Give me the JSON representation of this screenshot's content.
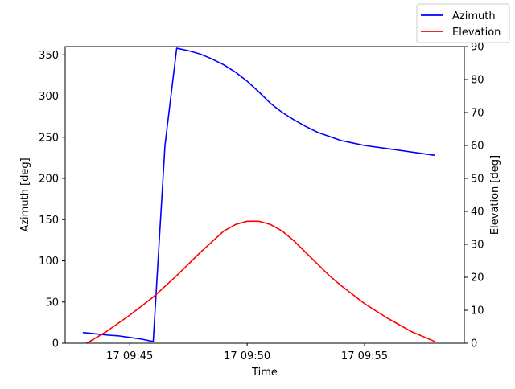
{
  "chart_data": {
    "type": "line",
    "title": "",
    "xlabel": "Time",
    "ylabel_left": "Azimuth [deg]",
    "ylabel_right": "Elevation [deg]",
    "x_tick_labels": [
      "17 09:45",
      "17 09:50",
      "17 09:55"
    ],
    "x_tick_values": [
      "09:45",
      "09:50",
      "09:55"
    ],
    "xlim": [
      "09:42:15",
      "09:59:15"
    ],
    "ylim_left": [
      0,
      360
    ],
    "ylim_right": [
      0,
      90
    ],
    "y_ticks_left": [
      0,
      50,
      100,
      150,
      200,
      250,
      300,
      350
    ],
    "y_ticks_right": [
      0,
      10,
      20,
      30,
      40,
      50,
      60,
      70,
      80,
      90
    ],
    "grid": false,
    "legend_position": "top-right",
    "series": [
      {
        "name": "Azimuth",
        "axis": "left",
        "color": "#0000ff",
        "x": [
          "09:43:00",
          "09:44:00",
          "09:44:30",
          "09:45:00",
          "09:45:30",
          "09:46:00",
          "09:46:30",
          "09:47:00",
          "09:47:30",
          "09:48:00",
          "09:48:30",
          "09:49:00",
          "09:49:30",
          "09:50:00",
          "09:50:30",
          "09:51:00",
          "09:51:30",
          "09:52:00",
          "09:52:30",
          "09:53:00",
          "09:53:30",
          "09:54:00",
          "09:54:30",
          "09:55:00",
          "09:56:00",
          "09:57:00",
          "09:58:00"
        ],
        "values": [
          13,
          10,
          9,
          7,
          5,
          2,
          240,
          358,
          355,
          351,
          345,
          338,
          329,
          318,
          305,
          291,
          280,
          271,
          263,
          256,
          251,
          246,
          243,
          240,
          236,
          232,
          228
        ]
      },
      {
        "name": "Elevation",
        "axis": "right",
        "color": "#ff0000",
        "x": [
          "09:43:10",
          "09:44:00",
          "09:45:00",
          "09:46:00",
          "09:47:00",
          "09:48:00",
          "09:49:00",
          "09:49:30",
          "09:50:00",
          "09:50:30",
          "09:51:00",
          "09:51:30",
          "09:52:00",
          "09:52:30",
          "09:53:00",
          "09:53:30",
          "09:54:00",
          "09:55:00",
          "09:56:00",
          "09:57:00",
          "09:58:00"
        ],
        "values": [
          0,
          3.5,
          8.5,
          14,
          20.5,
          27.5,
          34,
          36,
          37,
          37,
          36,
          34,
          31,
          27.5,
          24,
          20.5,
          17.5,
          12,
          7.5,
          3.5,
          0.5
        ]
      }
    ]
  }
}
